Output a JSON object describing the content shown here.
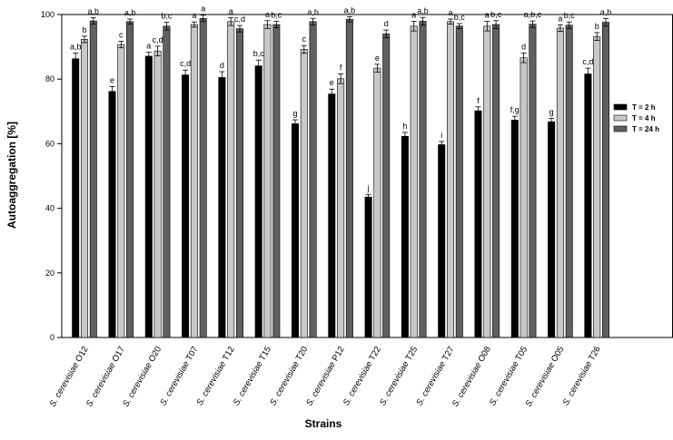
{
  "chart_data": {
    "type": "bar",
    "title": "",
    "xlabel": "Strains",
    "ylabel": "Autoaggregation [%]",
    "ylim": [
      0,
      100
    ],
    "yticks": [
      0,
      20,
      40,
      60,
      80,
      100
    ],
    "grid": false,
    "legend_position": "right",
    "categories": [
      {
        "prefix": "S. cerevisiae",
        "code": "O12"
      },
      {
        "prefix": "S. cerevisiae",
        "code": "O17"
      },
      {
        "prefix": "S. cerevisiae",
        "code": "O20"
      },
      {
        "prefix": "S. cerevisiae",
        "code": "T07"
      },
      {
        "prefix": "S. cerevisiae",
        "code": "T12"
      },
      {
        "prefix": "S. cerevisiae",
        "code": "T15"
      },
      {
        "prefix": "S. cerevisiae",
        "code": "T20"
      },
      {
        "prefix": "S. cerevisiae",
        "code": "P12"
      },
      {
        "prefix": "S. cerevisiae",
        "code": "T22"
      },
      {
        "prefix": "S. cerevisiae",
        "code": "T25"
      },
      {
        "prefix": "S. cerevisiae",
        "code": "T27"
      },
      {
        "prefix": "S. cerevisiae",
        "code": "O08"
      },
      {
        "prefix": "S. cerevisiae",
        "code": "T05"
      },
      {
        "prefix": "S. cerevisiae",
        "code": "O05"
      },
      {
        "prefix": "S. cerevisiae",
        "code": "T26"
      }
    ],
    "series": [
      {
        "name": "T = 2 h",
        "color": "#000000",
        "values": [
          86.3,
          76.2,
          87.1,
          81.3,
          80.5,
          84.1,
          66.2,
          75.4,
          43.5,
          62.3,
          59.7,
          70.2,
          67.3,
          66.8,
          81.6
        ],
        "errors": [
          1.8,
          1.5,
          1.2,
          1.5,
          1.8,
          1.8,
          1.2,
          1.5,
          0.8,
          1.2,
          1.0,
          1.2,
          1.2,
          1.0,
          1.8
        ],
        "labels": [
          "a,b",
          "e",
          "a",
          "c,d",
          "d",
          "b,c",
          "g",
          "e",
          "j",
          "h",
          "i",
          "f",
          "f,g",
          "g",
          "c,d"
        ]
      },
      {
        "name": "T = 4 h",
        "color": "#c8c8c8",
        "values": [
          92.3,
          90.7,
          88.7,
          96.9,
          97.8,
          96.9,
          89.2,
          80.1,
          83.4,
          96.4,
          97.8,
          96.4,
          86.6,
          95.8,
          93.2
        ],
        "errors": [
          1.0,
          1.0,
          1.5,
          0.8,
          1.2,
          1.2,
          1.2,
          1.5,
          1.2,
          1.5,
          0.8,
          1.5,
          1.5,
          1.0,
          1.2
        ],
        "labels": [
          "b",
          "c",
          "c,d",
          "a",
          "a",
          "a",
          "c",
          "f",
          "e",
          "a",
          "a",
          "a",
          "d",
          "a",
          "b"
        ]
      },
      {
        "name": "T = 24 h",
        "color": "#606060",
        "values": [
          98.0,
          97.8,
          96.4,
          98.8,
          95.6,
          96.9,
          97.8,
          98.5,
          94.0,
          97.9,
          96.4,
          96.9,
          97.0,
          96.7,
          97.6
        ],
        "errors": [
          1.0,
          0.8,
          1.2,
          1.0,
          1.0,
          1.0,
          1.0,
          0.8,
          1.2,
          1.2,
          0.8,
          1.2,
          1.0,
          1.0,
          1.2
        ],
        "labels": [
          "a,b",
          "a,b",
          "b,c",
          "a",
          "c,d",
          "b,c",
          "a,b",
          "a,b",
          "d",
          "a,b",
          "b,c",
          "b,c",
          "a,b,c",
          "b,c",
          "a,b"
        ]
      }
    ]
  }
}
